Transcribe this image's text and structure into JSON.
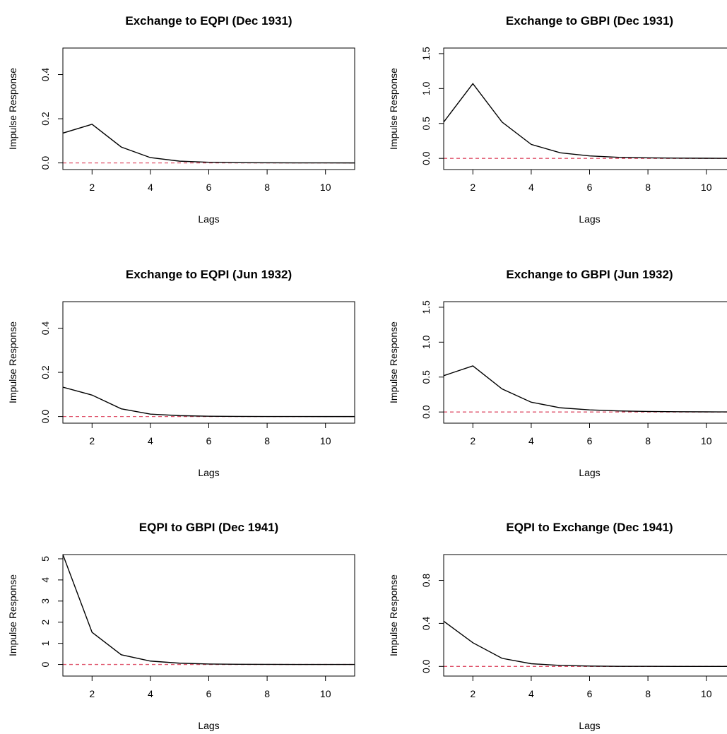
{
  "chart_data": [
    {
      "type": "line",
      "title": "Exchange to EQPI (Dec 1931)",
      "xlabel": "Lags",
      "ylabel": "Impulse Response",
      "xlim": [
        1,
        11
      ],
      "ylim": [
        -0.03,
        0.52
      ],
      "xticks": [
        2,
        4,
        6,
        8,
        10
      ],
      "yticks": [
        0.0,
        0.2,
        0.4
      ],
      "ytick_labels": [
        "0.0",
        "0.2",
        "0.4"
      ],
      "x": [
        1,
        2,
        3,
        4,
        5,
        6,
        7,
        8,
        9,
        10,
        11
      ],
      "series": [
        {
          "values": [
            0.135,
            0.175,
            0.072,
            0.024,
            0.008,
            0.003,
            0.001,
            0.0005,
            0.0002,
            0.0001,
            0.0
          ]
        }
      ],
      "reference_line": {
        "y": 0,
        "color": "#df536b",
        "style": "dashed"
      },
      "line_color": "#000000",
      "grid": false
    },
    {
      "type": "line",
      "title": "Exchange to GBPI (Dec 1931)",
      "xlabel": "Lags",
      "ylabel": "Impulse Response",
      "xlim": [
        1,
        11
      ],
      "ylim": [
        -0.16,
        1.58
      ],
      "xticks": [
        2,
        4,
        6,
        8,
        10
      ],
      "yticks": [
        0.0,
        0.5,
        1.0,
        1.5
      ],
      "ytick_labels": [
        "0.0",
        "0.5",
        "1.0",
        "1.5"
      ],
      "x": [
        1,
        2,
        3,
        4,
        5,
        6,
        7,
        8,
        9,
        10,
        11
      ],
      "series": [
        {
          "values": [
            0.52,
            1.07,
            0.52,
            0.2,
            0.08,
            0.035,
            0.015,
            0.008,
            0.004,
            0.002,
            0.001
          ]
        }
      ],
      "reference_line": {
        "y": 0,
        "color": "#df536b",
        "style": "dashed"
      },
      "line_color": "#000000",
      "grid": false
    },
    {
      "type": "line",
      "title": "Exchange to EQPI (Jun 1932)",
      "xlabel": "Lags",
      "ylabel": "Impulse Response",
      "xlim": [
        1,
        11
      ],
      "ylim": [
        -0.03,
        0.52
      ],
      "xticks": [
        2,
        4,
        6,
        8,
        10
      ],
      "yticks": [
        0.0,
        0.2,
        0.4
      ],
      "ytick_labels": [
        "0.0",
        "0.2",
        "0.4"
      ],
      "x": [
        1,
        2,
        3,
        4,
        5,
        6,
        7,
        8,
        9,
        10,
        11
      ],
      "series": [
        {
          "values": [
            0.133,
            0.097,
            0.035,
            0.011,
            0.004,
            0.0015,
            0.0007,
            0.0003,
            0.0001,
            0.0,
            0.0
          ]
        }
      ],
      "reference_line": {
        "y": 0,
        "color": "#df536b",
        "style": "dashed"
      },
      "line_color": "#000000",
      "grid": false
    },
    {
      "type": "line",
      "title": "Exchange to GBPI (Jun 1932)",
      "xlabel": "Lags",
      "ylabel": "Impulse Response",
      "xlim": [
        1,
        11
      ],
      "ylim": [
        -0.16,
        1.58
      ],
      "xticks": [
        2,
        4,
        6,
        8,
        10
      ],
      "yticks": [
        0.0,
        0.5,
        1.0,
        1.5
      ],
      "ytick_labels": [
        "0.0",
        "0.5",
        "1.0",
        "1.5"
      ],
      "x": [
        1,
        2,
        3,
        4,
        5,
        6,
        7,
        8,
        9,
        10,
        11
      ],
      "series": [
        {
          "values": [
            0.52,
            0.66,
            0.33,
            0.14,
            0.06,
            0.03,
            0.015,
            0.008,
            0.004,
            0.002,
            0.001
          ]
        }
      ],
      "reference_line": {
        "y": 0,
        "color": "#df536b",
        "style": "dashed"
      },
      "line_color": "#000000",
      "grid": false
    },
    {
      "type": "line",
      "title": "EQPI to GBPI (Dec 1941)",
      "xlabel": "Lags",
      "ylabel": "Impulse Response",
      "xlim": [
        1,
        11
      ],
      "ylim": [
        -0.55,
        5.2
      ],
      "xticks": [
        2,
        4,
        6,
        8,
        10
      ],
      "yticks": [
        0,
        1,
        2,
        3,
        4,
        5
      ],
      "ytick_labels": [
        "0",
        "1",
        "2",
        "3",
        "4",
        "5"
      ],
      "x": [
        1,
        2,
        3,
        4,
        5,
        6,
        7,
        8,
        9,
        10,
        11
      ],
      "series": [
        {
          "values": [
            5.2,
            1.52,
            0.46,
            0.16,
            0.06,
            0.02,
            0.008,
            0.003,
            0.001,
            0.0,
            0.0
          ]
        }
      ],
      "reference_line": {
        "y": 0,
        "color": "#df536b",
        "style": "dashed"
      },
      "line_color": "#000000",
      "grid": false
    },
    {
      "type": "line",
      "title": "EQPI to Exchange (Dec 1941)",
      "xlabel": "Lags",
      "ylabel": "Impulse Response",
      "xlim": [
        1,
        11
      ],
      "ylim": [
        -0.09,
        1.04
      ],
      "xticks": [
        2,
        4,
        6,
        8,
        10
      ],
      "yticks": [
        0.0,
        0.4,
        0.8
      ],
      "ytick_labels": [
        "0.0",
        "0.4",
        "0.8"
      ],
      "x": [
        1,
        2,
        3,
        4,
        5,
        6,
        7,
        8,
        9,
        10,
        11
      ],
      "series": [
        {
          "values": [
            0.42,
            0.22,
            0.075,
            0.025,
            0.009,
            0.003,
            0.001,
            0.0005,
            0.0002,
            0.0,
            0.0
          ]
        }
      ],
      "reference_line": {
        "y": 0,
        "color": "#df536b",
        "style": "dashed"
      },
      "line_color": "#000000",
      "grid": false
    }
  ]
}
